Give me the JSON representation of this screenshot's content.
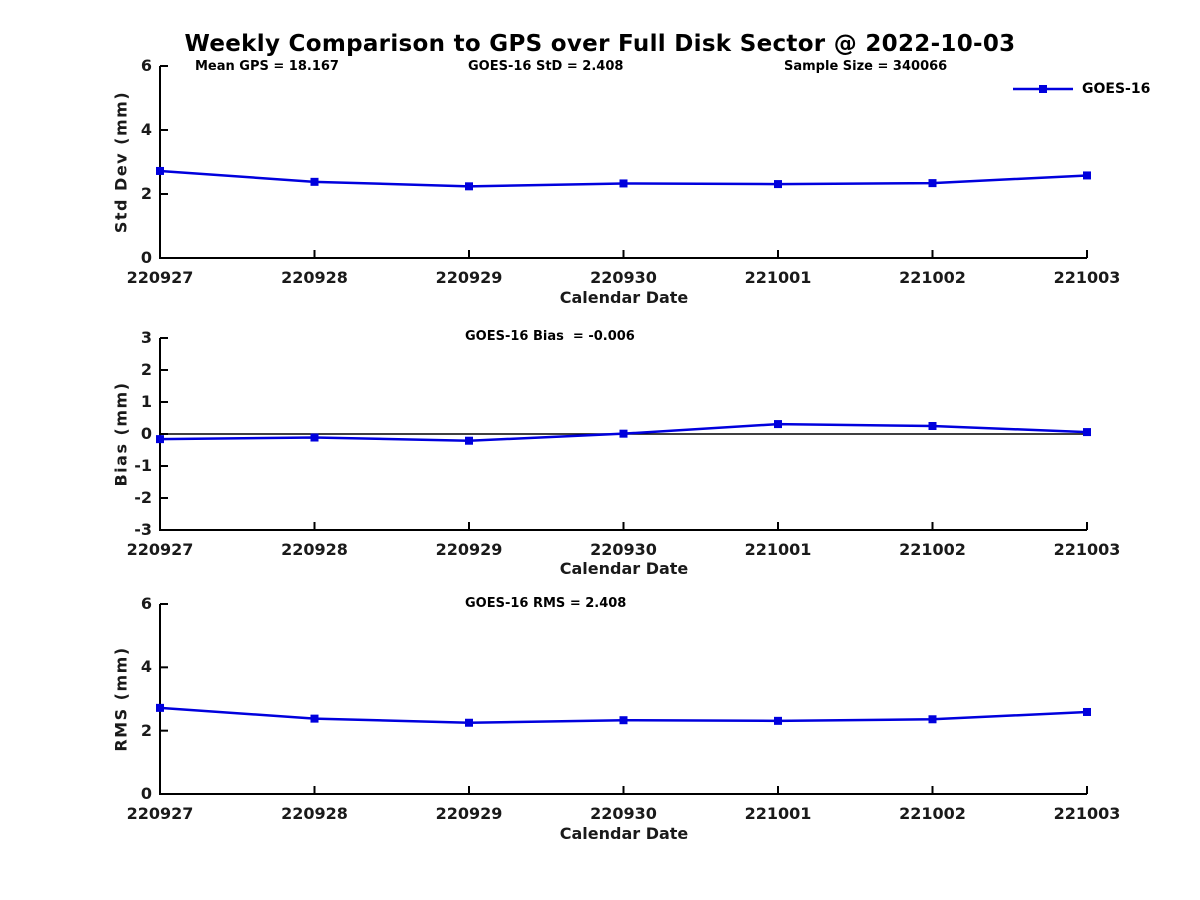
{
  "title": "Weekly Comparison to GPS over Full Disk Sector @ 2022-10-03",
  "legend": {
    "label": "GOES-16"
  },
  "colors": {
    "series": "#0000dd",
    "axis": "#000000",
    "text": "#1a1a1a",
    "background": "#ffffff"
  },
  "chart_data": [
    {
      "type": "line",
      "name": "std-dev",
      "series_name": "GOES-16",
      "annotations": [
        "Mean GPS = 18.167",
        "GOES-16 StD = 2.408",
        "Sample Size = 340066"
      ],
      "ylabel": "Std Dev (mm)",
      "xlabel": "Calendar Date",
      "categories": [
        "220927",
        "220928",
        "220929",
        "220930",
        "221001",
        "221002",
        "221003"
      ],
      "values": [
        2.72,
        2.38,
        2.24,
        2.33,
        2.31,
        2.34,
        2.58
      ],
      "ylim": [
        0,
        6
      ],
      "yticks": [
        0,
        2,
        4,
        6
      ],
      "grid": false,
      "zero_line": false,
      "legend_position": "top-right",
      "marker": "square"
    },
    {
      "type": "line",
      "name": "bias",
      "series_name": "GOES-16",
      "annotations": [
        "GOES-16 Bias  = -0.006"
      ],
      "ylabel": "Bias (mm)",
      "xlabel": "Calendar Date",
      "categories": [
        "220927",
        "220928",
        "220929",
        "220930",
        "221001",
        "221002",
        "221003"
      ],
      "values": [
        -0.16,
        -0.11,
        -0.21,
        0.01,
        0.31,
        0.25,
        0.06
      ],
      "ylim": [
        -3,
        3
      ],
      "yticks": [
        -3,
        -2,
        -1,
        0,
        1,
        2,
        3
      ],
      "grid": false,
      "zero_line": true,
      "marker": "square"
    },
    {
      "type": "line",
      "name": "rms",
      "series_name": "GOES-16",
      "annotations": [
        "GOES-16 RMS = 2.408"
      ],
      "ylabel": "RMS (mm)",
      "xlabel": "Calendar Date",
      "categories": [
        "220927",
        "220928",
        "220929",
        "220930",
        "221001",
        "221002",
        "221003"
      ],
      "values": [
        2.72,
        2.38,
        2.25,
        2.33,
        2.31,
        2.36,
        2.59
      ],
      "ylim": [
        0,
        6
      ],
      "yticks": [
        0,
        2,
        4,
        6
      ],
      "grid": false,
      "zero_line": false,
      "marker": "square"
    }
  ]
}
